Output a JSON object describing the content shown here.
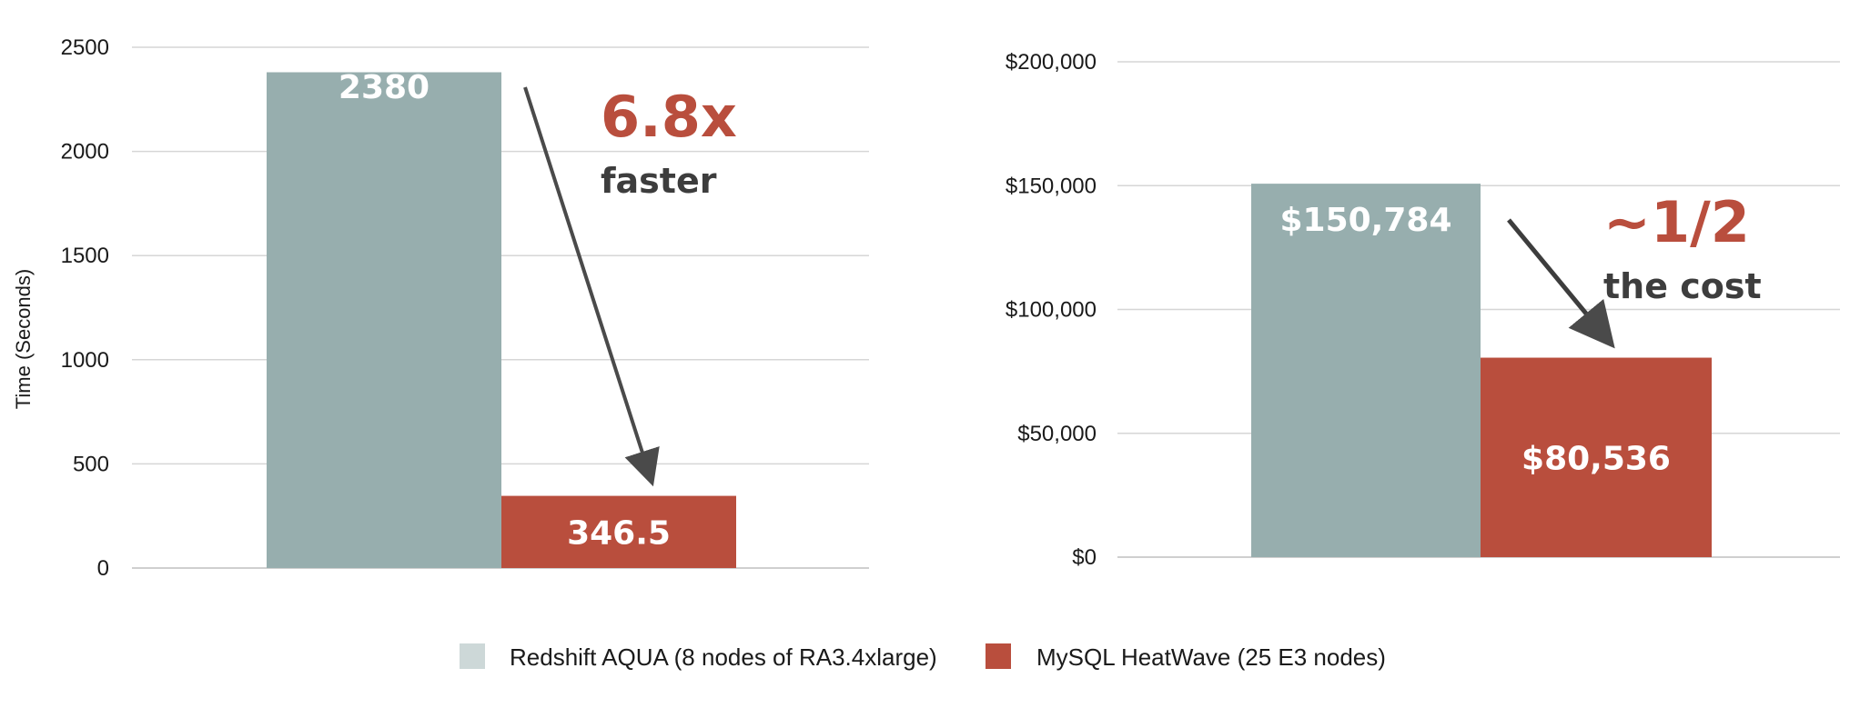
{
  "colors": {
    "redshift": "#97aeae",
    "heatwave": "#b94e3d",
    "legend_redshift": "#cdd8d8",
    "callout_red": "#b94e3d",
    "callout_gray": "#3d3d3d",
    "arrow": "#4a4a4a",
    "grid": "#d6d6d6"
  },
  "chart_data": [
    {
      "type": "bar",
      "ylabel": "Time (Seconds)",
      "ylim": [
        0,
        2500
      ],
      "yticks": [
        "0",
        "500",
        "1000",
        "1500",
        "2000",
        "2500"
      ],
      "grid": true,
      "series": [
        {
          "name": "Redshift AQUA (8 nodes of RA3.4xlarge)",
          "value": 2380,
          "label": "2380"
        },
        {
          "name": "MySQL HeatWave (25 E3 nodes)",
          "value": 346.5,
          "label": "346.5"
        }
      ],
      "annotation": {
        "big": "6.8x",
        "small": "faster"
      }
    },
    {
      "type": "bar",
      "ylabel": "",
      "ylim": [
        0,
        200000
      ],
      "yticks": [
        "$0",
        "$50,000",
        "$100,000",
        "$150,000",
        "$200,000"
      ],
      "grid": true,
      "series": [
        {
          "name": "Redshift AQUA (8 nodes of RA3.4xlarge)",
          "value": 150784,
          "label": "$150,784"
        },
        {
          "name": "MySQL HeatWave (25 E3 nodes)",
          "value": 80536,
          "label": "$80,536"
        }
      ],
      "annotation": {
        "big": "~1/2",
        "small": "the cost"
      }
    }
  ],
  "legend": [
    {
      "label": "Redshift AQUA (8 nodes of RA3.4xlarge)"
    },
    {
      "label": "MySQL HeatWave (25 E3 nodes)"
    }
  ]
}
